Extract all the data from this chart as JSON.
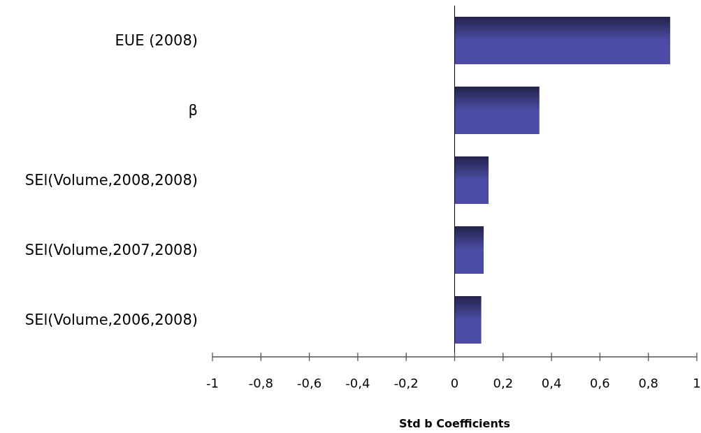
{
  "chart_data": {
    "type": "bar",
    "orientation": "horizontal",
    "xlabel": "Std b Coefficients",
    "categories": [
      "EUE (2008)",
      "β",
      "SEl(Volume,2008,2008)",
      "SEl(Volume,2007,2008)",
      "SEl(Volume,2006,2008)"
    ],
    "values": [
      0.89,
      0.35,
      0.14,
      0.12,
      0.11
    ],
    "color": "#4c4ca6",
    "xlim": [
      -1,
      1
    ],
    "xticks": [
      {
        "value": -1,
        "label": "-1"
      },
      {
        "value": -0.8,
        "label": "-0,8"
      },
      {
        "value": -0.6,
        "label": "-0,6"
      },
      {
        "value": -0.4,
        "label": "-0,4"
      },
      {
        "value": -0.2,
        "label": "-0,2"
      },
      {
        "value": 0,
        "label": "0"
      },
      {
        "value": 0.2,
        "label": "0,2"
      },
      {
        "value": 0.4,
        "label": "0,4"
      },
      {
        "value": 0.6,
        "label": "0,6"
      },
      {
        "value": 0.8,
        "label": "0,8"
      },
      {
        "value": 1,
        "label": "1"
      }
    ],
    "tick_labels": "x"
  }
}
